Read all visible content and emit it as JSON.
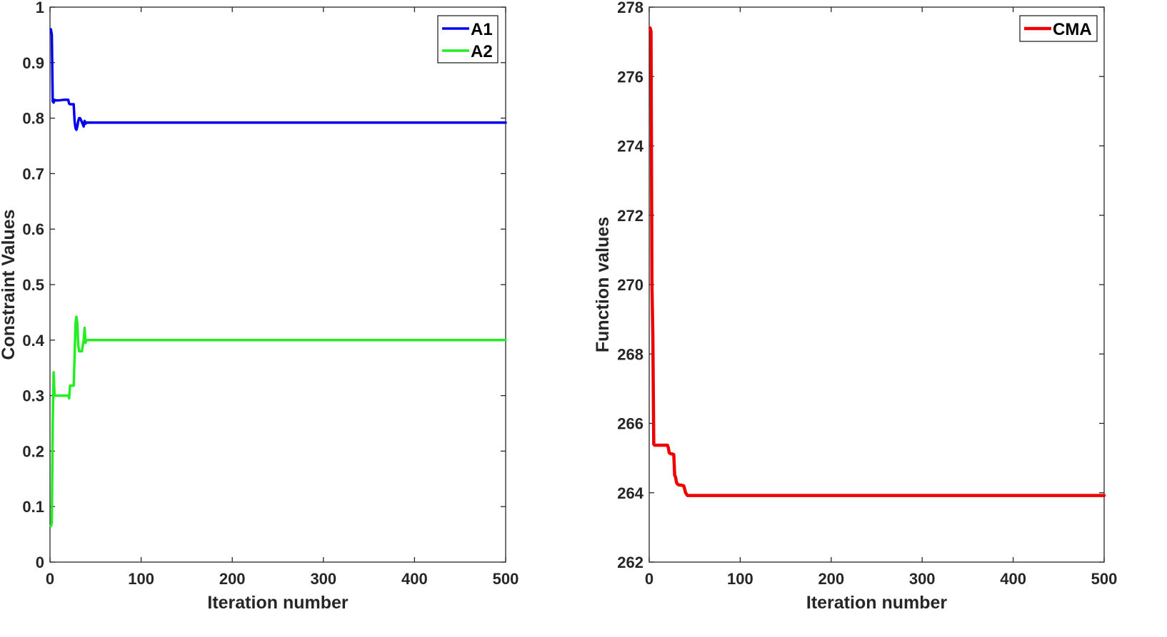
{
  "chart_data": [
    {
      "type": "line",
      "title": "",
      "xlabel": "Iteration number",
      "ylabel": "Constraint Values",
      "xlim": [
        0,
        500
      ],
      "ylim": [
        0,
        1
      ],
      "xticks": [
        0,
        100,
        200,
        300,
        400,
        500
      ],
      "yticks": [
        0,
        0.1,
        0.2,
        0.3,
        0.4,
        0.5,
        0.6,
        0.7,
        0.8,
        0.9,
        1
      ],
      "xtick_labels": [
        "0",
        "100",
        "200",
        "300",
        "400",
        "500"
      ],
      "ytick_labels": [
        "0",
        "0.1",
        "0.2",
        "0.3",
        "0.4",
        "0.5",
        "0.6",
        "0.7",
        "0.8",
        "0.9",
        "1"
      ],
      "grid": false,
      "legend_position": "top-right",
      "series": [
        {
          "name": "A1",
          "color": "#0000ee",
          "x": [
            1,
            2,
            3,
            4,
            5,
            6,
            10,
            15,
            20,
            21,
            22,
            24,
            26,
            27,
            28,
            29,
            30,
            31,
            32,
            33,
            35,
            37,
            38,
            39,
            40,
            45,
            100,
            200,
            300,
            400,
            500
          ],
          "y": [
            0.96,
            0.95,
            0.83,
            0.828,
            0.833,
            0.832,
            0.832,
            0.833,
            0.833,
            0.826,
            0.825,
            0.825,
            0.825,
            0.795,
            0.782,
            0.779,
            0.785,
            0.795,
            0.8,
            0.8,
            0.793,
            0.785,
            0.795,
            0.79,
            0.792,
            0.792,
            0.792,
            0.792,
            0.792,
            0.792,
            0.792
          ]
        },
        {
          "name": "A2",
          "color": "#22ee22",
          "x": [
            1,
            2,
            3,
            4,
            5,
            6,
            10,
            15,
            20,
            21,
            22,
            24,
            26,
            27,
            28,
            29,
            30,
            31,
            32,
            33,
            35,
            37,
            38,
            39,
            40,
            45,
            100,
            200,
            300,
            400,
            500
          ],
          "y": [
            0.065,
            0.07,
            0.25,
            0.342,
            0.3,
            0.3,
            0.3,
            0.3,
            0.3,
            0.295,
            0.318,
            0.318,
            0.318,
            0.37,
            0.43,
            0.442,
            0.43,
            0.39,
            0.38,
            0.38,
            0.38,
            0.4,
            0.422,
            0.395,
            0.4,
            0.4,
            0.4,
            0.4,
            0.4,
            0.4,
            0.4
          ]
        }
      ]
    },
    {
      "type": "line",
      "title": "",
      "xlabel": "Iteration number",
      "ylabel": "Function values",
      "xlim": [
        0,
        500
      ],
      "ylim": [
        262,
        278
      ],
      "xticks": [
        0,
        100,
        200,
        300,
        400,
        500
      ],
      "yticks": [
        262,
        264,
        266,
        268,
        270,
        272,
        274,
        276,
        278
      ],
      "xtick_labels": [
        "0",
        "100",
        "200",
        "300",
        "400",
        "500"
      ],
      "ytick_labels": [
        "262",
        "264",
        "266",
        "268",
        "270",
        "272",
        "274",
        "276",
        "278"
      ],
      "grid": false,
      "legend_position": "top-right",
      "series": [
        {
          "name": "CMA",
          "color": "#ee0000",
          "x": [
            1,
            2,
            3,
            4,
            5,
            6,
            8,
            10,
            15,
            20,
            21,
            22,
            24,
            25,
            27,
            28,
            29,
            30,
            31,
            33,
            35,
            38,
            40,
            42,
            44,
            50,
            100,
            200,
            300,
            400,
            500
          ],
          "y": [
            277.4,
            277.3,
            270,
            268.5,
            265.4,
            265.37,
            265.37,
            265.37,
            265.37,
            265.37,
            265.3,
            265.15,
            265.12,
            265.12,
            265.1,
            264.5,
            264.45,
            264.3,
            264.25,
            264.22,
            264.22,
            264.2,
            264.0,
            263.92,
            263.92,
            263.92,
            263.92,
            263.92,
            263.92,
            263.92,
            263.92
          ]
        }
      ]
    }
  ]
}
